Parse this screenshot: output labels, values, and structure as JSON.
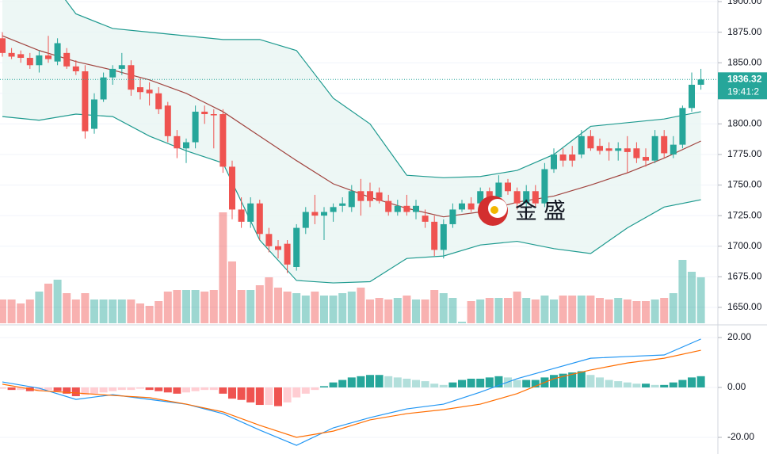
{
  "chart_data": [
    {
      "type": "candlestick",
      "open": [
        1870,
        1858,
        1857,
        1854,
        1848,
        1856,
        1851,
        1858,
        1847,
        1843,
        1796,
        1820,
        1838,
        1845,
        1848,
        1830,
        1828,
        1825,
        1815,
        1790,
        1780,
        1785,
        1810,
        1808,
        1808,
        1765,
        1730,
        1720,
        1735,
        1710,
        1700,
        1702,
        1683,
        1715,
        1728,
        1725,
        1728,
        1733,
        1732,
        1745,
        1745,
        1744,
        1737,
        1728,
        1733,
        1728,
        1725,
        1720,
        1697,
        1718,
        1730,
        1735,
        1735,
        1745,
        1740,
        1752,
        1745,
        1735,
        1745,
        1735,
        1763,
        1775,
        1775,
        1775,
        1790,
        1782,
        1780,
        1778,
        1780,
        1780,
        1773,
        1770,
        1790,
        1775,
        1783,
        1813,
        1832
      ],
      "high": [
        1875,
        1862,
        1860,
        1858,
        1860,
        1872,
        1870,
        1862,
        1852,
        1848,
        1825,
        1842,
        1848,
        1858,
        1852,
        1838,
        1834,
        1830,
        1818,
        1795,
        1788,
        1815,
        1815,
        1812,
        1812,
        1770,
        1740,
        1740,
        1738,
        1715,
        1705,
        1705,
        1718,
        1732,
        1742,
        1732,
        1735,
        1740,
        1750,
        1755,
        1752,
        1748,
        1742,
        1738,
        1742,
        1738,
        1730,
        1725,
        1722,
        1735,
        1738,
        1740,
        1748,
        1748,
        1758,
        1755,
        1748,
        1750,
        1750,
        1768,
        1780,
        1780,
        1782,
        1795,
        1795,
        1788,
        1785,
        1785,
        1790,
        1785,
        1780,
        1795,
        1795,
        1790,
        1815,
        1842,
        1845
      ],
      "low": [
        1855,
        1853,
        1850,
        1845,
        1842,
        1850,
        1848,
        1845,
        1840,
        1788,
        1792,
        1818,
        1832,
        1840,
        1823,
        1820,
        1815,
        1808,
        1785,
        1772,
        1768,
        1780,
        1800,
        1780,
        1760,
        1722,
        1715,
        1715,
        1705,
        1695,
        1690,
        1678,
        1680,
        1710,
        1718,
        1705,
        1720,
        1728,
        1728,
        1725,
        1732,
        1735,
        1725,
        1725,
        1725,
        1722,
        1715,
        1692,
        1690,
        1715,
        1728,
        1728,
        1732,
        1735,
        1738,
        1742,
        1730,
        1732,
        1732,
        1732,
        1760,
        1765,
        1765,
        1772,
        1778,
        1775,
        1770,
        1770,
        1760,
        1768,
        1765,
        1768,
        1772,
        1772,
        1780,
        1810,
        1828
      ],
      "close": [
        1858,
        1855,
        1854,
        1848,
        1856,
        1853,
        1866,
        1847,
        1843,
        1794,
        1820,
        1838,
        1845,
        1848,
        1828,
        1826,
        1825,
        1812,
        1790,
        1780,
        1785,
        1810,
        1808,
        1807,
        1765,
        1730,
        1720,
        1735,
        1710,
        1700,
        1697,
        1685,
        1715,
        1728,
        1725,
        1728,
        1732,
        1735,
        1745,
        1737,
        1737,
        1737,
        1728,
        1733,
        1728,
        1733,
        1720,
        1697,
        1718,
        1730,
        1735,
        1730,
        1745,
        1738,
        1752,
        1745,
        1735,
        1745,
        1735,
        1763,
        1775,
        1770,
        1770,
        1790,
        1780,
        1778,
        1778,
        1780,
        1777,
        1772,
        1770,
        1790,
        1776,
        1783,
        1813,
        1832,
        1836.32
      ],
      "volume": [
        30,
        30,
        25,
        30,
        40,
        50,
        55,
        38,
        30,
        38,
        30,
        30,
        30,
        30,
        30,
        25,
        22,
        28,
        40,
        42,
        42,
        42,
        40,
        42,
        140,
        78,
        42,
        42,
        48,
        58,
        45,
        40,
        38,
        35,
        40,
        35,
        35,
        38,
        40,
        45,
        30,
        32,
        30,
        32,
        35,
        30,
        30,
        42,
        38,
        32,
        2,
        28,
        30,
        32,
        32,
        32,
        40,
        32,
        30,
        35,
        30,
        35,
        35,
        35,
        35,
        32,
        30,
        32,
        30,
        28,
        28,
        30,
        32,
        38,
        80,
        65,
        58
      ],
      "up_color": "#26a69a",
      "down_color": "#ef5350",
      "bands": {
        "index": [
          0,
          4,
          8,
          12,
          16,
          20,
          24,
          28,
          32,
          36,
          40,
          44,
          48,
          52,
          56,
          60,
          64,
          68,
          72,
          76
        ],
        "upper": [
          1960,
          1930,
          1890,
          1878,
          1875,
          1872,
          1869,
          1869,
          1860,
          1821,
          1800,
          1758,
          1756,
          1757,
          1762,
          1775,
          1798,
          1801,
          1804,
          1810
        ],
        "middle": [
          1872,
          1860,
          1851,
          1844,
          1836,
          1825,
          1810,
          1790,
          1770,
          1751,
          1740,
          1731,
          1724,
          1728,
          1736,
          1741,
          1750,
          1760,
          1772,
          1786
        ],
        "lower": [
          1806,
          1803,
          1808,
          1806,
          1790,
          1778,
          1768,
          1705,
          1672,
          1670,
          1671,
          1690,
          1692,
          1701,
          1704,
          1698,
          1694,
          1715,
          1732,
          1738
        ],
        "band_color": "#1e9a8f",
        "middle_color": "#a1443f",
        "fill": "#e8f5f3"
      },
      "ylim": [
        1637,
        1901.3
      ],
      "yticks": [
        {
          "value": 1650,
          "label": "1650.00"
        },
        {
          "value": 1675,
          "label": "1675.00"
        },
        {
          "value": 1700,
          "label": "1700.00"
        },
        {
          "value": 1725,
          "label": "1725.00"
        },
        {
          "value": 1750,
          "label": "1750.00"
        },
        {
          "value": 1775,
          "label": "1775.00"
        },
        {
          "value": 1800,
          "label": "1800.00"
        },
        {
          "value": 1825,
          "label": "1825.00"
        },
        {
          "value": 1850,
          "label": "1850.00"
        },
        {
          "value": 1875,
          "label": "1875.00"
        },
        {
          "value": 1900,
          "label": "1900.00"
        }
      ],
      "last_price": 1836.32,
      "countdown": "19:41:2",
      "watermark": "金盛"
    },
    {
      "type": "macd",
      "index": [
        0,
        4,
        8,
        12,
        16,
        20,
        24,
        28,
        32,
        36,
        40,
        44,
        48,
        52,
        56,
        60,
        64,
        68,
        72,
        76
      ],
      "macd": [
        2.2,
        -0.3,
        -4.8,
        -2.9,
        -4.8,
        -6.7,
        -10.5,
        -17.1,
        -23.2,
        -16.2,
        -12.1,
        -8.6,
        -6.7,
        -1.9,
        3.5,
        7.6,
        11.7,
        12.4,
        13.0,
        19.4
      ],
      "signal": [
        1.3,
        -1.3,
        -2.2,
        -3.2,
        -4.1,
        -6.7,
        -9.8,
        -15.2,
        -20.0,
        -17.5,
        -13.0,
        -10.5,
        -8.9,
        -6.7,
        -2.5,
        3.5,
        7.0,
        9.8,
        11.7,
        14.9
      ],
      "histogram": [
        -0.5,
        -1,
        -1,
        -1.5,
        -1.5,
        -1,
        -1.5,
        -2.5,
        -3.5,
        -3,
        -2.5,
        -2,
        -1.5,
        -1,
        -1,
        -0.5,
        -1,
        -1.5,
        -2,
        -2.5,
        -2,
        -1.5,
        -1,
        -1,
        -2.5,
        -4.5,
        -5,
        -6,
        -7,
        -7,
        -7.5,
        -6,
        -4,
        -2.5,
        -1,
        0.5,
        2,
        3,
        4,
        4.5,
        5,
        5,
        4.5,
        4,
        3.5,
        3,
        2.5,
        1.5,
        1,
        2,
        3,
        3.5,
        3.5,
        4,
        4.5,
        4,
        3,
        3,
        3,
        4,
        5,
        5.5,
        6,
        6.5,
        5,
        4,
        3,
        2.5,
        2,
        1.5,
        1.5,
        1,
        1,
        2,
        3,
        4,
        4.5
      ],
      "macd_color": "#2196f3",
      "signal_color": "#ff6d00",
      "hist_colors": [
        "#26a69a",
        "#b2dfdb",
        "#ffcdd2",
        "#ef5350"
      ],
      "ylim": [
        -26.67,
        24.44
      ],
      "yticks": [
        {
          "value": 20,
          "label": "20.00"
        },
        {
          "value": 0,
          "label": "0.00"
        },
        {
          "value": -20,
          "label": "-20.00"
        }
      ]
    }
  ]
}
